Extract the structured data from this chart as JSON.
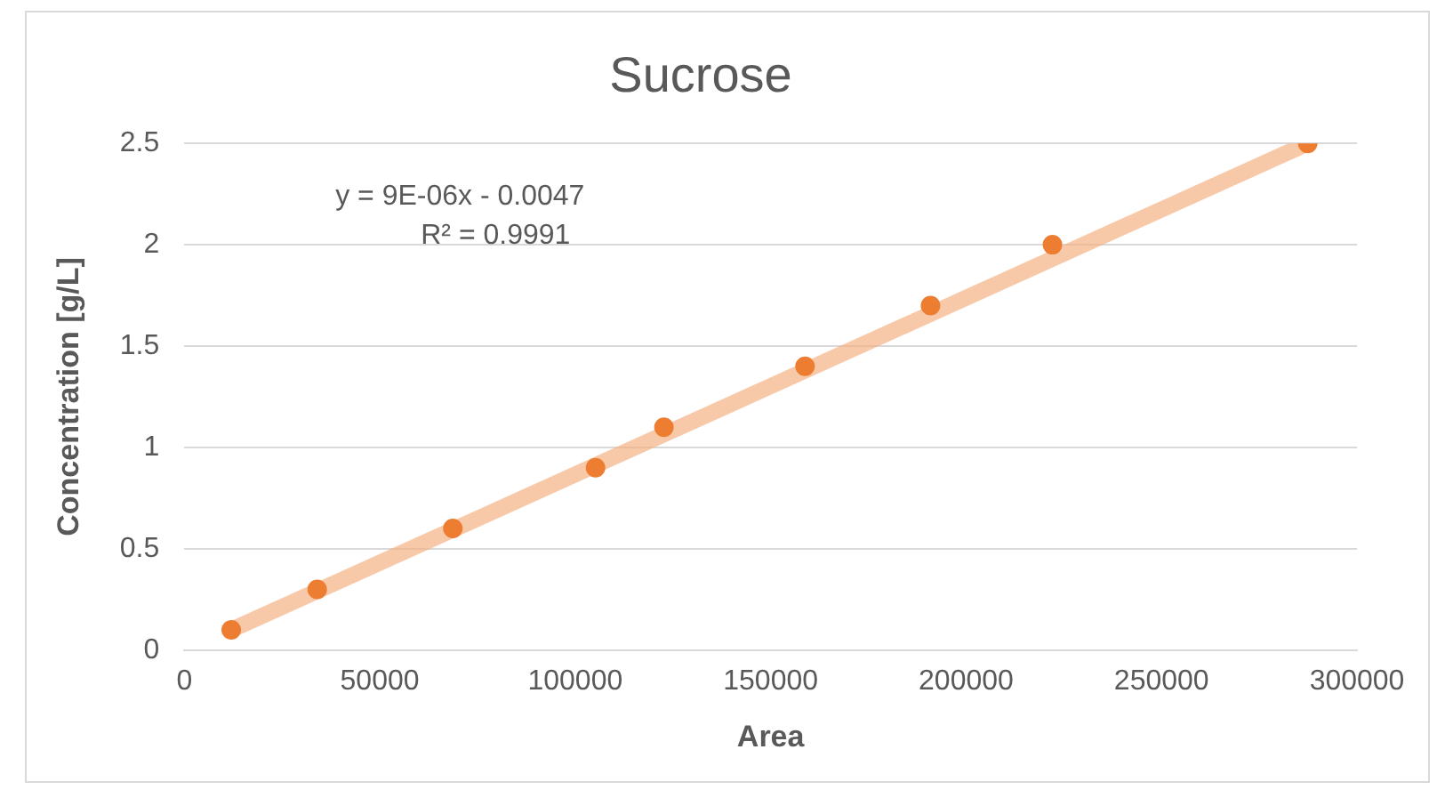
{
  "chart_data": {
    "type": "scatter",
    "title": "Sucrose",
    "xlabel": "Area",
    "ylabel": "Concentration [g/L]",
    "xlim": [
      0,
      300000
    ],
    "xticks": [
      0,
      50000,
      100000,
      150000,
      200000,
      250000,
      300000
    ],
    "ylim": [
      0,
      2.5
    ],
    "yticks": [
      0,
      0.5,
      1,
      1.5,
      2,
      2.5
    ],
    "grid": "y",
    "legend": false,
    "marker": "circle",
    "annotations": [
      "y = 9E-06x - 0.0047",
      "R² = 0.9991"
    ],
    "series": [
      {
        "type": "scatter",
        "color": "#ed7d31",
        "x": [
          12000,
          34000,
          68700,
          105200,
          122700,
          158800,
          190900,
          222100,
          287400
        ],
        "values": [
          0.1,
          0.3,
          0.6,
          0.9,
          1.1,
          1.4,
          1.7,
          2.0,
          2.5
        ]
      },
      {
        "type": "line",
        "marker": "none",
        "color": "#f4b183",
        "x": [
          12000,
          287400
        ],
        "values": [
          0.1,
          2.5
        ]
      }
    ]
  }
}
